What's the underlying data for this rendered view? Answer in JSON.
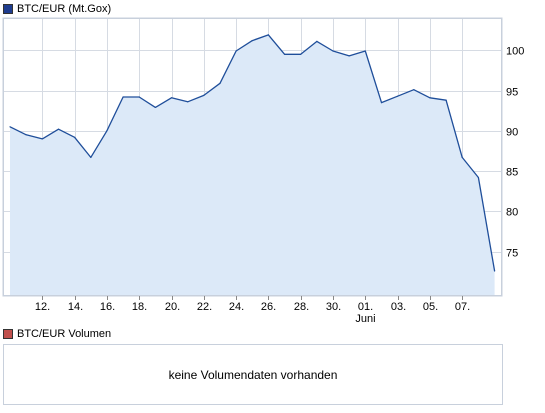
{
  "price_legend": {
    "label": "BTC/EUR (Mt.Gox)",
    "color": "#1f3d8f"
  },
  "volume_legend": {
    "label": "BTC/EUR Volumen",
    "color": "#c0504d"
  },
  "volume_panel": {
    "message": "keine Volumendaten vorhanden"
  },
  "colors": {
    "line": "#1f4e9a",
    "area": "#dce9f8",
    "grid": "#d6dbe3",
    "frame": "#c8d0dc"
  },
  "chart_data": {
    "type": "area",
    "title": "BTC/EUR (Mt.Gox)",
    "xlabel": "",
    "ylabel": "",
    "y_axis_side": "right",
    "grid": true,
    "ylim": [
      69.5,
      104
    ],
    "yticks": [
      75,
      80,
      85,
      90,
      95,
      100
    ],
    "x_tick_labels": [
      "12.",
      "14.",
      "16.",
      "18.",
      "20.",
      "22.",
      "24.",
      "26.",
      "28.",
      "30.",
      "01.",
      "03.",
      "05.",
      "07."
    ],
    "x_tick_positions": [
      2,
      4,
      6,
      8,
      10,
      12,
      14,
      16,
      18,
      20,
      22,
      24,
      26,
      28
    ],
    "month_label": {
      "text": "Juni",
      "position": 22
    },
    "x": [
      0,
      1,
      2,
      3,
      4,
      5,
      6,
      7,
      8,
      9,
      10,
      11,
      12,
      13,
      14,
      15,
      16,
      17,
      18,
      19,
      20,
      21,
      22,
      23,
      24,
      25,
      26,
      27,
      28,
      29,
      30
    ],
    "series": [
      {
        "values": [
          90.5,
          89.5,
          89.0,
          90.2,
          89.2,
          86.7,
          90.0,
          94.2,
          94.2,
          92.9,
          94.1,
          93.6,
          94.4,
          95.9,
          99.9,
          101.2,
          101.9,
          99.5,
          99.5,
          101.1,
          99.9,
          99.3,
          99.9,
          93.5,
          94.3,
          95.1,
          94.1,
          93.8,
          86.7,
          84.2,
          72.6
        ]
      }
    ]
  }
}
